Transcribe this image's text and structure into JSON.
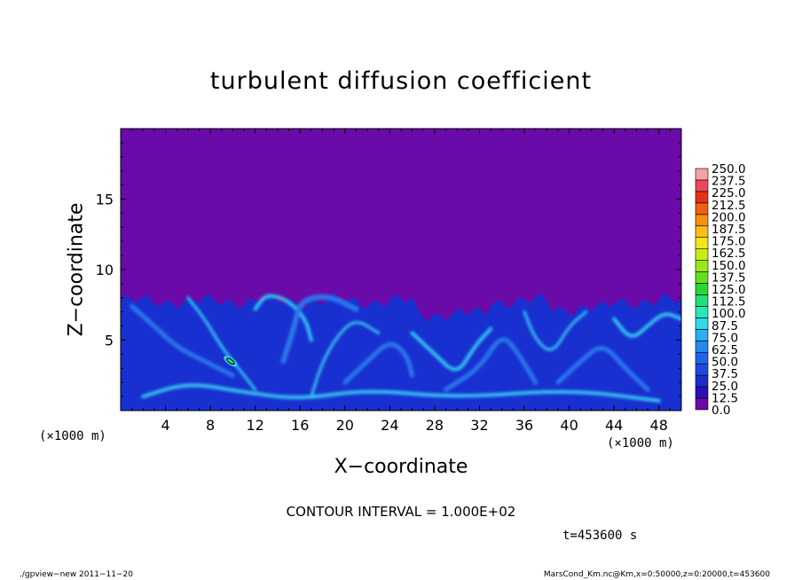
{
  "chart_data": {
    "type": "heatmap",
    "title": "turbulent diffusion coefficient",
    "xlabel": "X−coordinate",
    "ylabel": "Z−coordinate",
    "x_unit": "(×1000 m)",
    "y_unit": "(×1000 m)",
    "xlim": [
      0,
      50
    ],
    "ylim": [
      0,
      20
    ],
    "x_ticks": [
      4,
      8,
      12,
      16,
      20,
      24,
      28,
      32,
      36,
      40,
      44,
      48
    ],
    "y_ticks": [
      5,
      10,
      15
    ],
    "x_tick_labels": [
      "4",
      "8",
      "12",
      "16",
      "20",
      "24",
      "28",
      "32",
      "36",
      "40",
      "44",
      "48"
    ],
    "y_tick_labels": [
      "5",
      "10",
      "15"
    ],
    "colorbar": {
      "levels": [
        0.0,
        12.5,
        25.0,
        37.5,
        50.0,
        62.5,
        75.0,
        87.5,
        100.0,
        112.5,
        125.0,
        137.5,
        150.0,
        162.5,
        175.0,
        187.5,
        200.0,
        212.5,
        225.0,
        237.5,
        250.0
      ],
      "labels": [
        "0.0",
        "12.5",
        "25.0",
        "37.5",
        "50.0",
        "62.5",
        "75.0",
        "87.5",
        "100.0",
        "112.5",
        "125.0",
        "137.5",
        "150.0",
        "162.5",
        "175.0",
        "187.5",
        "200.0",
        "212.5",
        "225.0",
        "237.5",
        "250.0"
      ],
      "colors": [
        "#6a0aa8",
        "#2a10b8",
        "#1a2ccc",
        "#1e48e0",
        "#2064ee",
        "#2488f0",
        "#28b0f0",
        "#30d8e8",
        "#28e8b8",
        "#20e078",
        "#28d830",
        "#60e020",
        "#98e818",
        "#c8ec18",
        "#f0e818",
        "#f8c018",
        "#f89010",
        "#f06010",
        "#e83018",
        "#f04858",
        "#f8a0a8"
      ]
    },
    "turbulent_layer_top_z": 8,
    "background_value": 0.0,
    "contour_interval_text": "CONTOUR INTERVAL = 1.000E+02",
    "time_text": "t=453600 s"
  },
  "footer": {
    "left": "./gpview−new   2011−11−20",
    "right": "MarsCond_Km.nc@Km,x=0:50000,z=0:20000,t=453600"
  },
  "colors": {
    "background_field": "#6a0aa8",
    "layer_base": "#1830d0",
    "layer_mid": "#2a78ec",
    "layer_high": "#36c8f0"
  }
}
